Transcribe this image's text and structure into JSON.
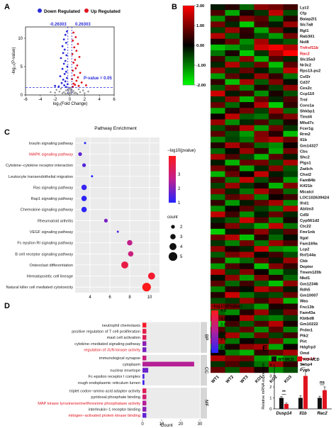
{
  "panel_labels": {
    "a": "A",
    "b": "B",
    "c": "C",
    "d": "D",
    "e": "E"
  },
  "chart_data": [
    {
      "panel": "A",
      "type": "scatter",
      "legend": [
        {
          "label": "Down Regulated",
          "color": "#2b2bd9"
        },
        {
          "label": "Up Regulated",
          "color": "#e0141e"
        }
      ],
      "xlabel": "log₂(Fold Change)",
      "ylabel": "-log₁₀(P-value)",
      "xticks": [
        "-6",
        "-4",
        "-2",
        "0",
        "2",
        "4",
        "6"
      ],
      "yticks": [
        "0",
        "5",
        "10"
      ],
      "xlim": [
        -6,
        6
      ],
      "ylim": [
        0,
        12
      ],
      "thresholds": {
        "left_label": "-0.26303",
        "right_label": "0.26303",
        "p_label": "P-value = 0.05",
        "left": -0.26303,
        "right": 0.26303,
        "p": 1.301
      },
      "down_points": [
        [
          -0.4,
          11.2
        ],
        [
          -0.6,
          10.6
        ],
        [
          -0.8,
          9.8
        ],
        [
          -0.5,
          9.2
        ],
        [
          -1.0,
          8.6
        ],
        [
          -0.7,
          8.0
        ],
        [
          -0.9,
          7.4
        ],
        [
          -0.45,
          7.0
        ],
        [
          -1.2,
          6.5
        ],
        [
          -0.6,
          6.0
        ],
        [
          -0.8,
          5.5
        ],
        [
          -0.35,
          5.0
        ],
        [
          -1.0,
          4.6
        ],
        [
          -0.5,
          4.1
        ],
        [
          -0.7,
          3.7
        ],
        [
          -1.3,
          3.3
        ],
        [
          -0.4,
          3.0
        ],
        [
          -0.9,
          2.7
        ],
        [
          -0.6,
          2.4
        ],
        [
          -1.1,
          2.1
        ],
        [
          -0.3,
          1.9
        ],
        [
          -0.75,
          1.7
        ],
        [
          -1.5,
          1.5
        ],
        [
          -0.5,
          1.4
        ],
        [
          -2.0,
          1.6
        ]
      ],
      "up_points": [
        [
          0.5,
          11.0
        ],
        [
          0.8,
          10.2
        ],
        [
          0.4,
          9.6
        ],
        [
          1.1,
          9.0
        ],
        [
          0.6,
          8.4
        ],
        [
          0.9,
          7.8
        ],
        [
          0.35,
          7.2
        ],
        [
          1.3,
          6.7
        ],
        [
          0.7,
          6.2
        ],
        [
          0.5,
          5.7
        ],
        [
          1.0,
          5.2
        ],
        [
          0.8,
          4.7
        ],
        [
          0.4,
          4.3
        ],
        [
          1.4,
          3.9
        ],
        [
          0.6,
          3.5
        ],
        [
          1.1,
          3.1
        ],
        [
          0.3,
          2.8
        ],
        [
          0.9,
          2.5
        ],
        [
          1.6,
          2.2
        ],
        [
          0.5,
          2.0
        ],
        [
          0.7,
          1.8
        ],
        [
          1.2,
          1.6
        ],
        [
          0.4,
          1.45
        ],
        [
          2.2,
          1.7
        ]
      ],
      "gray_points": [
        [
          -0.1,
          1.1
        ],
        [
          0.1,
          0.9
        ],
        [
          -0.2,
          0.7
        ],
        [
          0.2,
          0.6
        ],
        [
          0.0,
          0.4
        ],
        [
          -0.3,
          0.3
        ],
        [
          0.3,
          0.5
        ],
        [
          -0.5,
          0.8
        ],
        [
          0.5,
          0.7
        ],
        [
          -0.8,
          0.5
        ],
        [
          0.8,
          0.4
        ],
        [
          -1.0,
          0.3
        ],
        [
          1.0,
          0.2
        ],
        [
          -1.4,
          0.6
        ],
        [
          1.4,
          0.5
        ],
        [
          -0.15,
          0.2
        ],
        [
          0.15,
          0.15
        ],
        [
          -0.6,
          0.25
        ],
        [
          0.6,
          0.3
        ],
        [
          -2.0,
          0.4
        ],
        [
          2.0,
          0.3
        ],
        [
          -1.8,
          0.9
        ],
        [
          1.8,
          0.8
        ],
        [
          -0.1,
          1.2
        ],
        [
          0.1,
          1.25
        ],
        [
          -2.6,
          0.5
        ],
        [
          2.5,
          0.6
        ],
        [
          -0.25,
          1.0
        ],
        [
          0.25,
          1.0
        ],
        [
          -1.2,
          1.1
        ],
        [
          1.2,
          1.0
        ]
      ]
    },
    {
      "panel": "B",
      "type": "heatmap",
      "colorbar_ticks": [
        "2.00",
        "1.00",
        "0.00",
        "-1.00",
        "-2.00"
      ],
      "vmin": -2,
      "vmax": 2,
      "columns": [
        "WT1",
        "WT2",
        "WT3",
        "KO1",
        "KO2",
        "KO3"
      ],
      "rows": [
        "Lyz2",
        "Cfp",
        "Baiap2l1",
        "Slc7a8",
        "Rgl1",
        "Rab3il1",
        "Nol8",
        "Tnfrsf11b",
        "Rac2",
        "Slc15a3",
        "Nr3c2",
        "Rps13-ps2",
        "Csf2r",
        "Cd37",
        "Ces2c",
        "Ccp110",
        "Trnl",
        "Coro1a",
        "Shkbp1",
        "Timd4",
        "Mfsd7c",
        "Fcer1g",
        "Rrm2",
        "Il1b",
        "Gm14327",
        "Cbs",
        "Shc2",
        "Ptgs1",
        "Zwilch",
        "Chst2",
        "Fam84b",
        "Kif21b",
        "Micalcl",
        "LOC102639424",
        "Ifrd1",
        "Ablim3",
        "Cd5l",
        "Cyp561d2",
        "Ctc22",
        "Fmr1nb",
        "Itgal",
        "Fam169a",
        "Lcp2",
        "Rnf144a",
        "Ckb",
        "Deptor",
        "Tmem120b",
        "Nkd1",
        "Gm12346",
        "Rdh5",
        "Gm10007",
        "Was",
        "Fnc13b",
        "Fam43a",
        "Kbtbd8",
        "Gm10222",
        "Prdm1",
        "Plk2",
        "Pirt",
        "Hdgfrp3",
        "Omd",
        "Dusp14",
        "Ssbp4",
        "Pygb"
      ],
      "highlighted_rows": [
        "Tnfrsf11b",
        "Rac2",
        "Dusp14"
      ],
      "values": [
        [
          -0.2,
          0.3,
          -0.8,
          1.1,
          0.9,
          0.5
        ],
        [
          0.6,
          -1.3,
          0.2,
          -0.4,
          1.5,
          -0.6
        ],
        [
          -1.1,
          0.4,
          1.0,
          0.7,
          -0.9,
          0.3
        ],
        [
          0.9,
          -0.3,
          -1.6,
          0.5,
          -0.2,
          1.2
        ],
        [
          -0.5,
          1.2,
          0.4,
          -1.3,
          0.8,
          -0.1
        ],
        [
          1.4,
          -0.7,
          0.3,
          -0.6,
          -1.2,
          0.9
        ],
        [
          0.2,
          0.8,
          -1.1,
          1.3,
          -0.4,
          -0.7
        ],
        [
          -1.5,
          -1.2,
          -0.8,
          1.6,
          1.9,
          1.4
        ],
        [
          -0.9,
          0.2,
          -1.6,
          -0.4,
          1.3,
          2.0
        ],
        [
          0.5,
          -0.9,
          1.1,
          -1.4,
          0.6,
          -0.3
        ],
        [
          -0.3,
          1.4,
          -0.6,
          0.9,
          -1.5,
          0.7
        ],
        [
          1.1,
          -0.4,
          0.8,
          -0.2,
          -0.8,
          1.5
        ],
        [
          -1.2,
          0.7,
          -0.2,
          1.2,
          0.4,
          -0.9
        ],
        [
          0.4,
          -1.5,
          1.3,
          -0.7,
          1.0,
          -0.1
        ],
        [
          -0.7,
          0.9,
          -1.0,
          0.3,
          -0.5,
          1.1
        ],
        [
          1.6,
          -0.2,
          0.5,
          -1.1,
          0.2,
          -0.6
        ],
        [
          -0.4,
          1.1,
          -1.4,
          0.8,
          -0.3,
          0.6
        ],
        [
          0.8,
          -0.8,
          0.2,
          1.4,
          -1.6,
          0.4
        ],
        [
          -1.3,
          0.3,
          0.9,
          -0.5,
          1.2,
          -0.8
        ],
        [
          0.1,
          1.5,
          -0.7,
          -0.9,
          0.5,
          1.0
        ],
        [
          1.2,
          -1.1,
          -0.3,
          0.6,
          -0.7,
          0.2
        ],
        [
          -0.6,
          0.5,
          1.4,
          -1.2,
          0.9,
          -0.4
        ],
        [
          0.7,
          -0.6,
          -1.2,
          1.0,
          0.3,
          -1.5
        ],
        [
          -1.0,
          -0.5,
          -0.9,
          1.1,
          1.4,
          0.8
        ],
        [
          0.3,
          1.3,
          0.6,
          -0.8,
          -1.1,
          0.1
        ],
        [
          -0.8,
          -0.1,
          1.2,
          0.4,
          -1.3,
          0.9
        ],
        [
          1.3,
          0.6,
          -0.5,
          -1.4,
          0.7,
          -0.2
        ],
        [
          -0.2,
          -1.4,
          0.8,
          0.9,
          -0.6,
          1.3
        ],
        [
          0.9,
          0.4,
          -1.3,
          -0.3,
          1.1,
          -0.7
        ],
        [
          -1.4,
          0.8,
          0.1,
          1.5,
          -0.2,
          -0.5
        ],
        [
          0.6,
          -0.9,
          1.5,
          -0.6,
          0.4,
          -1.2
        ],
        [
          -0.5,
          1.2,
          -0.4,
          0.2,
          -1.4,
          1.0
        ],
        [
          1.0,
          -0.3,
          -0.9,
          1.3,
          0.6,
          -0.8
        ],
        [
          -0.9,
          0.7,
          1.1,
          -1.0,
          0.1,
          0.5
        ],
        [
          0.4,
          -1.2,
          -0.2,
          0.7,
          1.3,
          -1.1
        ],
        [
          -1.1,
          0.1,
          0.7,
          -0.5,
          -0.9,
          1.4
        ],
        [
          1.5,
          0.5,
          -1.1,
          -0.2,
          0.8,
          -0.3
        ],
        [
          -0.3,
          -0.7,
          1.6,
          0.6,
          -1.0,
          0.2
        ],
        [
          0.2,
          1.0,
          -0.6,
          -1.3,
          1.5,
          -0.9
        ],
        [
          -1.6,
          -0.2,
          0.4,
          1.1,
          -0.4,
          0.7
        ],
        [
          0.8,
          1.4,
          -1.5,
          0.3,
          -0.8,
          -0.1
        ],
        [
          -0.4,
          -1.0,
          0.9,
          -0.9,
          1.2,
          0.6
        ],
        [
          1.1,
          0.2,
          -0.3,
          1.6,
          -1.1,
          -1.3
        ],
        [
          -0.7,
          0.9,
          1.3,
          -0.1,
          0.5,
          -0.6
        ],
        [
          0.5,
          -1.3,
          -0.8,
          0.8,
          -0.2,
          1.2
        ],
        [
          -1.2,
          0.6,
          0.2,
          -1.5,
          1.0,
          0.4
        ],
        [
          1.4,
          -0.5,
          1.0,
          0.1,
          -1.2,
          -0.4
        ],
        [
          -0.1,
          1.1,
          -1.2,
          1.0,
          0.3,
          -0.8
        ],
        [
          0.7,
          -0.8,
          0.5,
          -0.7,
          -1.5,
          1.1
        ],
        [
          -1.0,
          0.3,
          -0.1,
          1.4,
          0.9,
          -0.2
        ],
        [
          0.3,
          1.6,
          -0.9,
          -0.4,
          -0.6,
          0.8
        ],
        [
          -0.6,
          -0.4,
          1.2,
          0.5,
          1.1,
          -1.4
        ],
        [
          1.2,
          0.8,
          -0.6,
          -1.2,
          0.2,
          0.3
        ],
        [
          -0.8,
          -1.1,
          0.3,
          1.2,
          -0.3,
          0.9
        ],
        [
          0.9,
          0.1,
          1.4,
          -0.8,
          -1.0,
          -0.5
        ],
        [
          -1.5,
          0.5,
          -0.7,
          0.6,
          1.4,
          0.2
        ],
        [
          0.6,
          -0.6,
          0.8,
          -1.1,
          0.7,
          -1.0
        ],
        [
          -0.2,
          1.3,
          -1.0,
          0.9,
          -0.5,
          0.5
        ],
        [
          1.3,
          -0.9,
          0.1,
          -0.3,
          1.0,
          -1.2
        ],
        [
          -0.9,
          0.2,
          1.1,
          1.3,
          -1.3,
          0.1
        ],
        [
          0.1,
          -1.0,
          -1.4,
          0.4,
          0.8,
          1.3
        ],
        [
          1.4,
          1.0,
          0.9,
          -1.2,
          -1.5,
          -1.0
        ],
        [
          -0.4,
          0.6,
          -0.3,
          -0.9,
          1.2,
          0.4
        ],
        [
          0.8,
          -0.7,
          1.0,
          0.2,
          -1.1,
          -0.6
        ]
      ]
    },
    {
      "panel": "C",
      "type": "scatter",
      "title": "Pathway Enrichment",
      "categories": [
        "Insulin signaling pathway",
        "MAPK signaling pathway",
        "Cytokine−cytokine receptor interaction",
        "Leukocyte transendothelial migration",
        "Ras signaling pathway",
        "Rap1 signaling pathway",
        "Chemokine signaling pathway",
        "Rheumatoid arthritis",
        "VEGF signaling pathway",
        "Fc epsilon RI signaling pathway",
        "B cell receptor signaling pathway",
        "Osteoclast differentiation",
        "Hematopoietic cell lineage",
        "Natural killer cell mediated cytotoxicity"
      ],
      "highlighted": [
        "MAPK signaling pathway"
      ],
      "x": [
        3.5,
        3.0,
        3.4,
        4.2,
        3.4,
        3.4,
        3.4,
        5.6,
        6.8,
        8.0,
        8.1,
        7.5,
        10.2,
        9.7
      ],
      "neglog10p": [
        1.0,
        1.6,
        1.5,
        1.0,
        1.2,
        1.1,
        1.1,
        1.9,
        1.5,
        2.7,
        2.9,
        3.7,
        4.0,
        4.3
      ],
      "count": [
        1,
        2,
        2,
        1,
        3,
        3,
        3,
        2,
        1,
        3,
        3,
        4,
        4,
        5
      ],
      "xticks": [
        "4",
        "6",
        "8",
        "10"
      ],
      "xlim": [
        2.5,
        11
      ],
      "color_legend_title": "−log10(pvalue)",
      "color_ticks": [
        "3",
        "2",
        "1"
      ],
      "color_range": [
        1,
        4.3
      ],
      "size_legend_title": "count",
      "size_ticks": [
        "2",
        "3",
        "4",
        "5"
      ]
    },
    {
      "panel": "D",
      "type": "bar",
      "orientation": "horizontal",
      "groups": [
        {
          "name": "BP",
          "terms": [
            {
              "label": "neutrophil chemotaxis",
              "count": 2,
              "neglog10p": 4.4
            },
            {
              "label": "positive regulation of T cell proliferation",
              "count": 2,
              "neglog10p": 4.0
            },
            {
              "label": "mast cell activation",
              "count": 2,
              "neglog10p": 3.8
            },
            {
              "label": "cytokine−mediated signaling pathway",
              "count": 2,
              "neglog10p": 2.6
            },
            {
              "label": "regulation of JUN kinase activity",
              "count": 2,
              "neglog10p": 2.4,
              "highlight": true
            }
          ]
        },
        {
          "name": "CC",
          "terms": [
            {
              "label": "immunological synapse",
              "count": 2,
              "neglog10p": 3.3
            },
            {
              "label": "cytoplasm",
              "count": 27,
              "neglog10p": 3.0
            },
            {
              "label": "nuclear envelope",
              "count": 3,
              "neglog10p": 2.3
            },
            {
              "label": "Fc-epsilon receptor I complex",
              "count": 1,
              "neglog10p": 2.0
            },
            {
              "label": "rough endoplasmic reticulum lumen",
              "count": 1,
              "neglog10p": 1.8
            }
          ]
        },
        {
          "name": "MF",
          "terms": [
            {
              "label": "triplet codon−amino acid adaptor activity",
              "count": 2,
              "neglog10p": 3.8
            },
            {
              "label": "pyridoxal phosphate binding",
              "count": 2,
              "neglog10p": 3.5
            },
            {
              "label": "MAP kinase tyrosine/serine/threonine phosphatase activity",
              "count": 2,
              "neglog10p": 3.0,
              "highlight": true
            },
            {
              "label": "interleukin−1 receptor binding",
              "count": 2,
              "neglog10p": 2.6
            },
            {
              "label": "mitogen−activated protein kinase binding",
              "count": 2,
              "neglog10p": 2.2,
              "highlight": true
            }
          ]
        }
      ],
      "xticks": [
        "0",
        "10",
        "20",
        "30"
      ],
      "xlim": [
        0,
        30
      ],
      "xlabel": "Count",
      "color_legend_title": "−log10(Pvalue)",
      "color_ticks": [
        "4.6",
        "4.0",
        "3.6",
        "3.0",
        "2.6",
        "2.0",
        "1.6"
      ],
      "color_range": [
        1.6,
        4.6
      ]
    },
    {
      "panel": "E",
      "type": "bar",
      "categories": [
        "Dusp14",
        "Il1b",
        "Rac2"
      ],
      "series": [
        {
          "name": "WT-MCD",
          "color": "#111111",
          "values": [
            1.0,
            1.0,
            1.0
          ],
          "errors": [
            0.12,
            0.2,
            0.15
          ]
        },
        {
          "name": "KO-MCD",
          "color": "#e0141e",
          "values": [
            0.45,
            3.0,
            1.7
          ],
          "errors": [
            0.08,
            0.55,
            0.3
          ]
        }
      ],
      "significance": [
        "**",
        "**",
        "ns"
      ],
      "ylabel": "Relative mRNA expression",
      "yticks": [
        "0",
        "1",
        "2",
        "3",
        "4"
      ],
      "ylim": [
        0,
        4
      ]
    }
  ]
}
